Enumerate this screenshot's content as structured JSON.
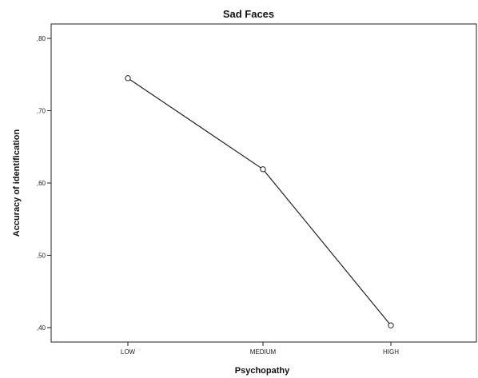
{
  "chart_data": {
    "type": "line",
    "title": "Sad Faces",
    "xlabel": "Psychopathy",
    "ylabel": "Accuracy of identification",
    "categories": [
      "LOW",
      "MEDIUM",
      "HIGH"
    ],
    "series": [
      {
        "values": [
          0.745,
          0.619,
          0.403
        ]
      }
    ],
    "ylim": [
      0.38,
      0.82
    ],
    "yticks": [
      0.4,
      0.5,
      0.6,
      0.7,
      0.8
    ],
    "ytick_labels": [
      ",40",
      ",50",
      ",60",
      ",70",
      ",80"
    ],
    "marker": "open-circle",
    "grid": false,
    "colors": {
      "line": "#222222",
      "frame": "#222222",
      "background": "#ffffff"
    }
  }
}
